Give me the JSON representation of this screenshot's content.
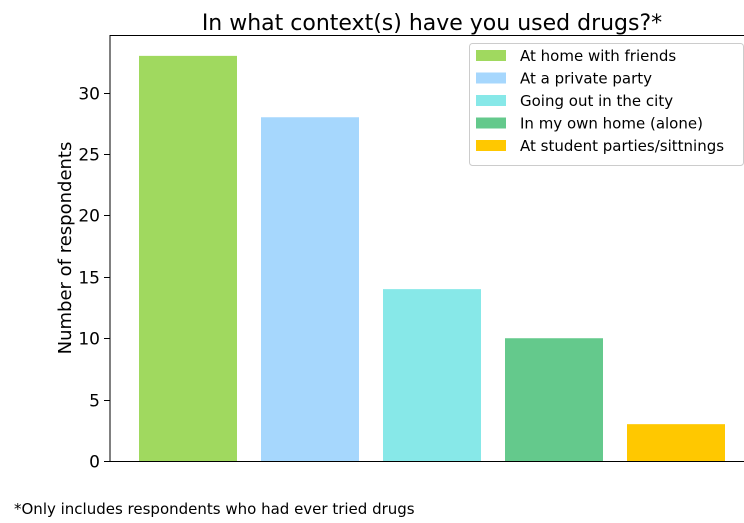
{
  "chart_data": {
    "type": "bar",
    "title": "In what context(s) have you used drugs?*",
    "xlabel": "",
    "ylabel": "Number of respondents",
    "categories": [
      "At home with friends",
      "At a private party",
      "Going out in the city",
      "In my own home (alone)",
      "At student parties/sittnings"
    ],
    "values": [
      33,
      28,
      14,
      10,
      3
    ],
    "colors": [
      "#a0d95f",
      "#a6d7fd",
      "#87e8e8",
      "#64c98c",
      "#ffc800"
    ],
    "ylim": [
      0,
      34.7
    ],
    "yticks": [
      0,
      5,
      10,
      15,
      20,
      25,
      30
    ],
    "grid": false,
    "legend": "top-right",
    "legend_entries": [
      "At home with friends",
      "At a private party",
      "Going out in the city",
      "In my own home (alone)",
      "At student parties/sittnings"
    ]
  },
  "footnote": "*Only includes respondents who had ever tried drugs"
}
